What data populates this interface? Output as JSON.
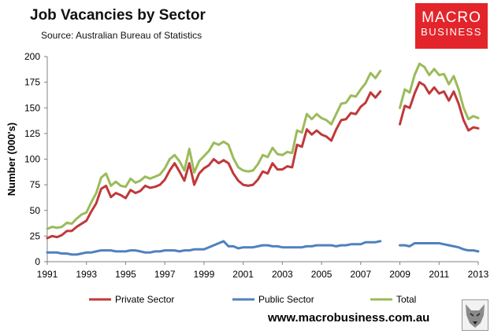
{
  "header": {
    "title": "Job Vacancies by Sector",
    "subtitle": "Source: Australian Bureau of Statistics"
  },
  "logo": {
    "line1": "MACRO",
    "line2": "BUSINESS",
    "color": "#e3252b"
  },
  "footer": {
    "website": "www.macrobusiness.com.au"
  },
  "chart_data": {
    "type": "line",
    "title": "Job Vacancies by Sector",
    "subtitle": "Source: Australian Bureau of Statistics",
    "xlabel": "",
    "ylabel": "Number (000's)",
    "xlim": [
      1991,
      2013
    ],
    "ylim": [
      0,
      200
    ],
    "x_ticks": [
      1991,
      1993,
      1995,
      1997,
      1999,
      2001,
      2003,
      2005,
      2007,
      2009,
      2011,
      2013
    ],
    "y_ticks": [
      0,
      25,
      50,
      75,
      100,
      125,
      150,
      175,
      200
    ],
    "grid": false,
    "legend": "bottom",
    "gap": [
      2007.75,
      2009.0
    ],
    "x": [
      1991.0,
      1991.25,
      1991.5,
      1991.75,
      1992.0,
      1992.25,
      1992.5,
      1992.75,
      1993.0,
      1993.25,
      1993.5,
      1993.75,
      1994.0,
      1994.25,
      1994.5,
      1994.75,
      1995.0,
      1995.25,
      1995.5,
      1995.75,
      1996.0,
      1996.25,
      1996.5,
      1996.75,
      1997.0,
      1997.25,
      1997.5,
      1997.75,
      1998.0,
      1998.25,
      1998.5,
      1998.75,
      1999.0,
      1999.25,
      1999.5,
      1999.75,
      2000.0,
      2000.25,
      2000.5,
      2000.75,
      2001.0,
      2001.25,
      2001.5,
      2001.75,
      2002.0,
      2002.25,
      2002.5,
      2002.75,
      2003.0,
      2003.25,
      2003.5,
      2003.75,
      2004.0,
      2004.25,
      2004.5,
      2004.75,
      2005.0,
      2005.25,
      2005.5,
      2005.75,
      2006.0,
      2006.25,
      2006.5,
      2006.75,
      2007.0,
      2007.25,
      2007.5,
      2007.75,
      2008.0,
      2008.25,
      2008.5,
      2008.75,
      2009.0,
      2009.25,
      2009.5,
      2009.75,
      2010.0,
      2010.25,
      2010.5,
      2010.75,
      2011.0,
      2011.25,
      2011.5,
      2011.75,
      2012.0,
      2012.25,
      2012.5,
      2012.75,
      2013.0
    ],
    "series": [
      {
        "name": "Private Sector",
        "color": "#c0393b",
        "values": [
          23,
          25,
          24,
          26,
          30,
          30,
          34,
          37,
          40,
          49,
          57,
          71,
          74,
          63,
          67,
          65,
          62,
          70,
          67,
          69,
          74,
          72,
          73,
          75,
          80,
          89,
          96,
          88,
          79,
          96,
          75,
          86,
          91,
          94,
          100,
          96,
          99,
          96,
          86,
          79,
          75,
          74,
          75,
          80,
          88,
          86,
          96,
          90,
          90,
          93,
          92,
          114,
          112,
          129,
          124,
          128,
          124,
          122,
          118,
          129,
          138,
          139,
          145,
          144,
          151,
          155,
          165,
          160,
          166,
          null,
          null,
          null,
          134,
          152,
          150,
          164,
          175,
          172,
          164,
          170,
          164,
          166,
          157,
          166,
          154,
          138,
          128,
          131,
          130
        ]
      },
      {
        "name": "Public Sector",
        "color": "#4f81bd",
        "values": [
          9,
          9,
          9,
          8,
          8,
          7,
          7,
          8,
          9,
          9,
          10,
          11,
          11,
          11,
          10,
          10,
          10,
          11,
          11,
          10,
          9,
          9,
          10,
          10,
          11,
          11,
          11,
          10,
          11,
          11,
          12,
          12,
          12,
          14,
          16,
          18,
          20,
          15,
          15,
          13,
          14,
          14,
          14,
          15,
          16,
          16,
          15,
          15,
          14,
          14,
          14,
          14,
          14,
          15,
          15,
          16,
          16,
          16,
          16,
          15,
          16,
          16,
          17,
          17,
          17,
          19,
          19,
          19,
          20,
          null,
          null,
          null,
          16,
          16,
          15,
          18,
          18,
          18,
          18,
          18,
          18,
          17,
          16,
          15,
          14,
          12,
          11,
          11,
          10
        ]
      },
      {
        "name": "Total",
        "color": "#9bbb59",
        "values": [
          32,
          34,
          33,
          34,
          38,
          37,
          42,
          46,
          48,
          58,
          67,
          82,
          86,
          74,
          78,
          74,
          73,
          81,
          77,
          79,
          83,
          81,
          83,
          85,
          91,
          100,
          104,
          98,
          89,
          110,
          87,
          98,
          103,
          108,
          116,
          114,
          117,
          114,
          101,
          92,
          89,
          88,
          89,
          95,
          104,
          102,
          111,
          105,
          104,
          107,
          106,
          128,
          126,
          144,
          139,
          144,
          140,
          138,
          134,
          144,
          154,
          155,
          162,
          161,
          168,
          174,
          184,
          179,
          186,
          null,
          null,
          null,
          150,
          168,
          165,
          182,
          193,
          190,
          182,
          188,
          182,
          183,
          173,
          181,
          168,
          150,
          139,
          142,
          140
        ]
      }
    ]
  }
}
